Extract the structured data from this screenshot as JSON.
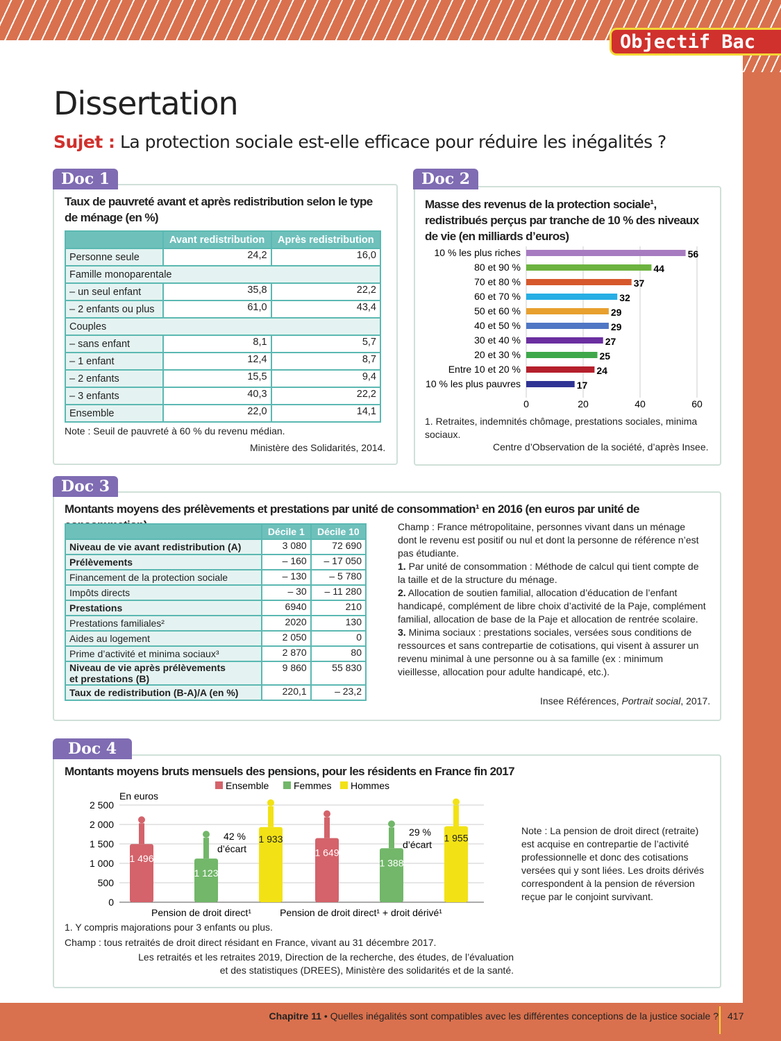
{
  "header": {
    "badge": "Objectif Bac",
    "title": "Dissertation",
    "sujet_label": "Sujet :",
    "sujet": "La protection sociale est-elle efficace pour réduire les inégalités ?"
  },
  "doc1": {
    "tab": "Doc 1",
    "title": "Taux de pauvreté avant et après redistribution selon le type de ménage (en %)",
    "columns": [
      "Avant redistribution",
      "Après redistribution"
    ],
    "rows": [
      [
        "Personne seule",
        "24,2",
        "16,0"
      ],
      [
        "Famille monoparentale",
        "",
        ""
      ],
      [
        "– un seul enfant",
        "35,8",
        "22,2"
      ],
      [
        "– 2 enfants ou plus",
        "61,0",
        "43,4"
      ],
      [
        "Couples",
        "",
        ""
      ],
      [
        "– sans enfant",
        "8,1",
        "5,7"
      ],
      [
        "– 1 enfant",
        "12,4",
        "8,7"
      ],
      [
        "– 2 enfants",
        "15,5",
        "9,4"
      ],
      [
        "– 3 enfants",
        "40,3",
        "22,2"
      ],
      [
        "Ensemble",
        "22,0",
        "14,1"
      ]
    ],
    "note": "Note : Seuil de pauvreté à 60 % du revenu médian.",
    "source": "Ministère des Solidarités, 2014."
  },
  "doc2": {
    "tab": "Doc 2",
    "title": "Masse des revenus de la protection sociale¹, redistribués perçus par tranche de 10 % des niveaux de vie (en milliards d’euros)",
    "note": "1. Retraites, indemnités chômage, prestations sociales, minima sociaux.",
    "source": "Centre d’Observation de la société, d’après Insee."
  },
  "doc3": {
    "tab": "Doc 3",
    "title": "Montants moyens des prélèvements et prestations par unité de consommation¹ en 2016 (en euros par unité de consommation)",
    "columns": [
      "Décile 1",
      "Décile 10"
    ],
    "rows": [
      [
        "Niveau de vie avant redistribution (A)",
        "3 080",
        "72 690",
        true
      ],
      [
        "Prélèvements",
        "– 160",
        "– 17 050",
        true
      ],
      [
        "Financement de la protection sociale",
        "– 130",
        "– 5 780",
        false
      ],
      [
        "Impôts directs",
        "– 30",
        "– 11 280",
        false
      ],
      [
        "Prestations",
        "6940",
        "210",
        true
      ],
      [
        "Prestations familiales²",
        "2020",
        "130",
        false
      ],
      [
        "Aides au logement",
        "2 050",
        "0",
        false
      ],
      [
        "Prime d’activité et minima sociaux³",
        "2 870",
        "80",
        false
      ],
      [
        "Niveau de vie après prélèvements et prestations (B)",
        "9 860",
        "55 830",
        true
      ],
      [
        "Taux de redistribution (B-A)/A (en %)",
        "220,1",
        "– 23,2",
        true
      ]
    ],
    "notes": [
      "Champ : France métropolitaine, personnes vivant dans un ménage dont le revenu est positif ou nul et dont la personne de référence n’est pas étudiante.",
      "1. Par unité de consommation : Méthode de calcul qui tient compte de la taille et de la structure du ménage.",
      "2. Allocation de soutien familial, allocation d’éducation de l’enfant handicapé, complément de libre choix d’activité de la Paje, complément familial, allocation de base de la Paje et allocation de rentrée scolaire.",
      "3. Minima sociaux : prestations sociales, versées sous conditions de ressources et sans contrepartie de cotisations, qui visent à assurer un revenu minimal à une personne ou à sa famille (ex : minimum vieillesse, allocation pour adulte handicapé, etc.)."
    ],
    "source": "Insee Références, Portrait social, 2017."
  },
  "doc4": {
    "tab": "Doc 4",
    "title": "Montants moyens bruts mensuels des pensions, pour les résidents en France fin 2017",
    "note": "Note : La pension de droit direct (retraite) est acquise en contrepartie de l’activité professionnelle et donc des cotisations versées qui y sont liées. Les droits dérivés correspondent à la pension de réversion reçue par le conjoint survivant.",
    "footnote": "1. Y compris majorations pour 3 enfants ou plus.",
    "champ": "Champ : tous retraités de droit direct résidant en France, vivant au 31 décembre 2017.",
    "source": "Les retraités et les retraites 2019, Direction de la recherche, des études, de l’évaluation et des statistiques (DREES), Ministère des solidarités et de la santé."
  },
  "footer": {
    "chapter": "Chapitre 11",
    "text": " • Quelles inégalités sont compatibles avec les différentes conceptions de la justice sociale ?",
    "page": "417"
  },
  "chart_data": [
    {
      "type": "bar",
      "orientation": "horizontal",
      "categories": [
        "10 % les plus riches",
        "80 et 90 %",
        "70 et 80 %",
        "60 et 70 %",
        "50 et 60 %",
        "40 et 50 %",
        "30 et 40 %",
        "20 et 30 %",
        "Entre 10 et 20 %",
        "10 % les plus pauvres"
      ],
      "values": [
        56,
        44,
        37,
        32,
        29,
        29,
        27,
        25,
        24,
        17
      ],
      "colors": [
        "#a77bc0",
        "#6db33f",
        "#d6582c",
        "#27aee4",
        "#e8a02e",
        "#4f77c4",
        "#6b2fa0",
        "#3ea84a",
        "#b5202c",
        "#2f3393"
      ],
      "xlim": [
        0,
        60
      ],
      "xticks": [
        0,
        20,
        40,
        60
      ],
      "grid": true
    },
    {
      "type": "bar",
      "categories": [
        "Pension de droit direct¹",
        "Pension de droit direct¹ + droit dérivé¹"
      ],
      "series": [
        {
          "name": "Ensemble",
          "values": [
            1496,
            1649
          ],
          "color": "#d4636b"
        },
        {
          "name": "Femmes",
          "values": [
            1123,
            1388
          ],
          "color": "#72b76a"
        },
        {
          "name": "Hommes",
          "values": [
            1933,
            1955
          ],
          "color": "#f2e215"
        }
      ],
      "ylabel": "En euros",
      "ylim": [
        0,
        2500
      ],
      "yticks": [
        0,
        500,
        1000,
        1500,
        2000,
        2500
      ],
      "yticklabels": [
        "0",
        "500",
        "1 000",
        "1 500",
        "2 000",
        "2 500"
      ],
      "value_labels": [
        [
          "1 496",
          "1 123",
          "1 933"
        ],
        [
          "1 649",
          "1 388",
          "1 955"
        ]
      ],
      "annotations": [
        "42 % d’écart",
        "29 % d’écart"
      ],
      "legend": "top",
      "grid": true
    }
  ]
}
